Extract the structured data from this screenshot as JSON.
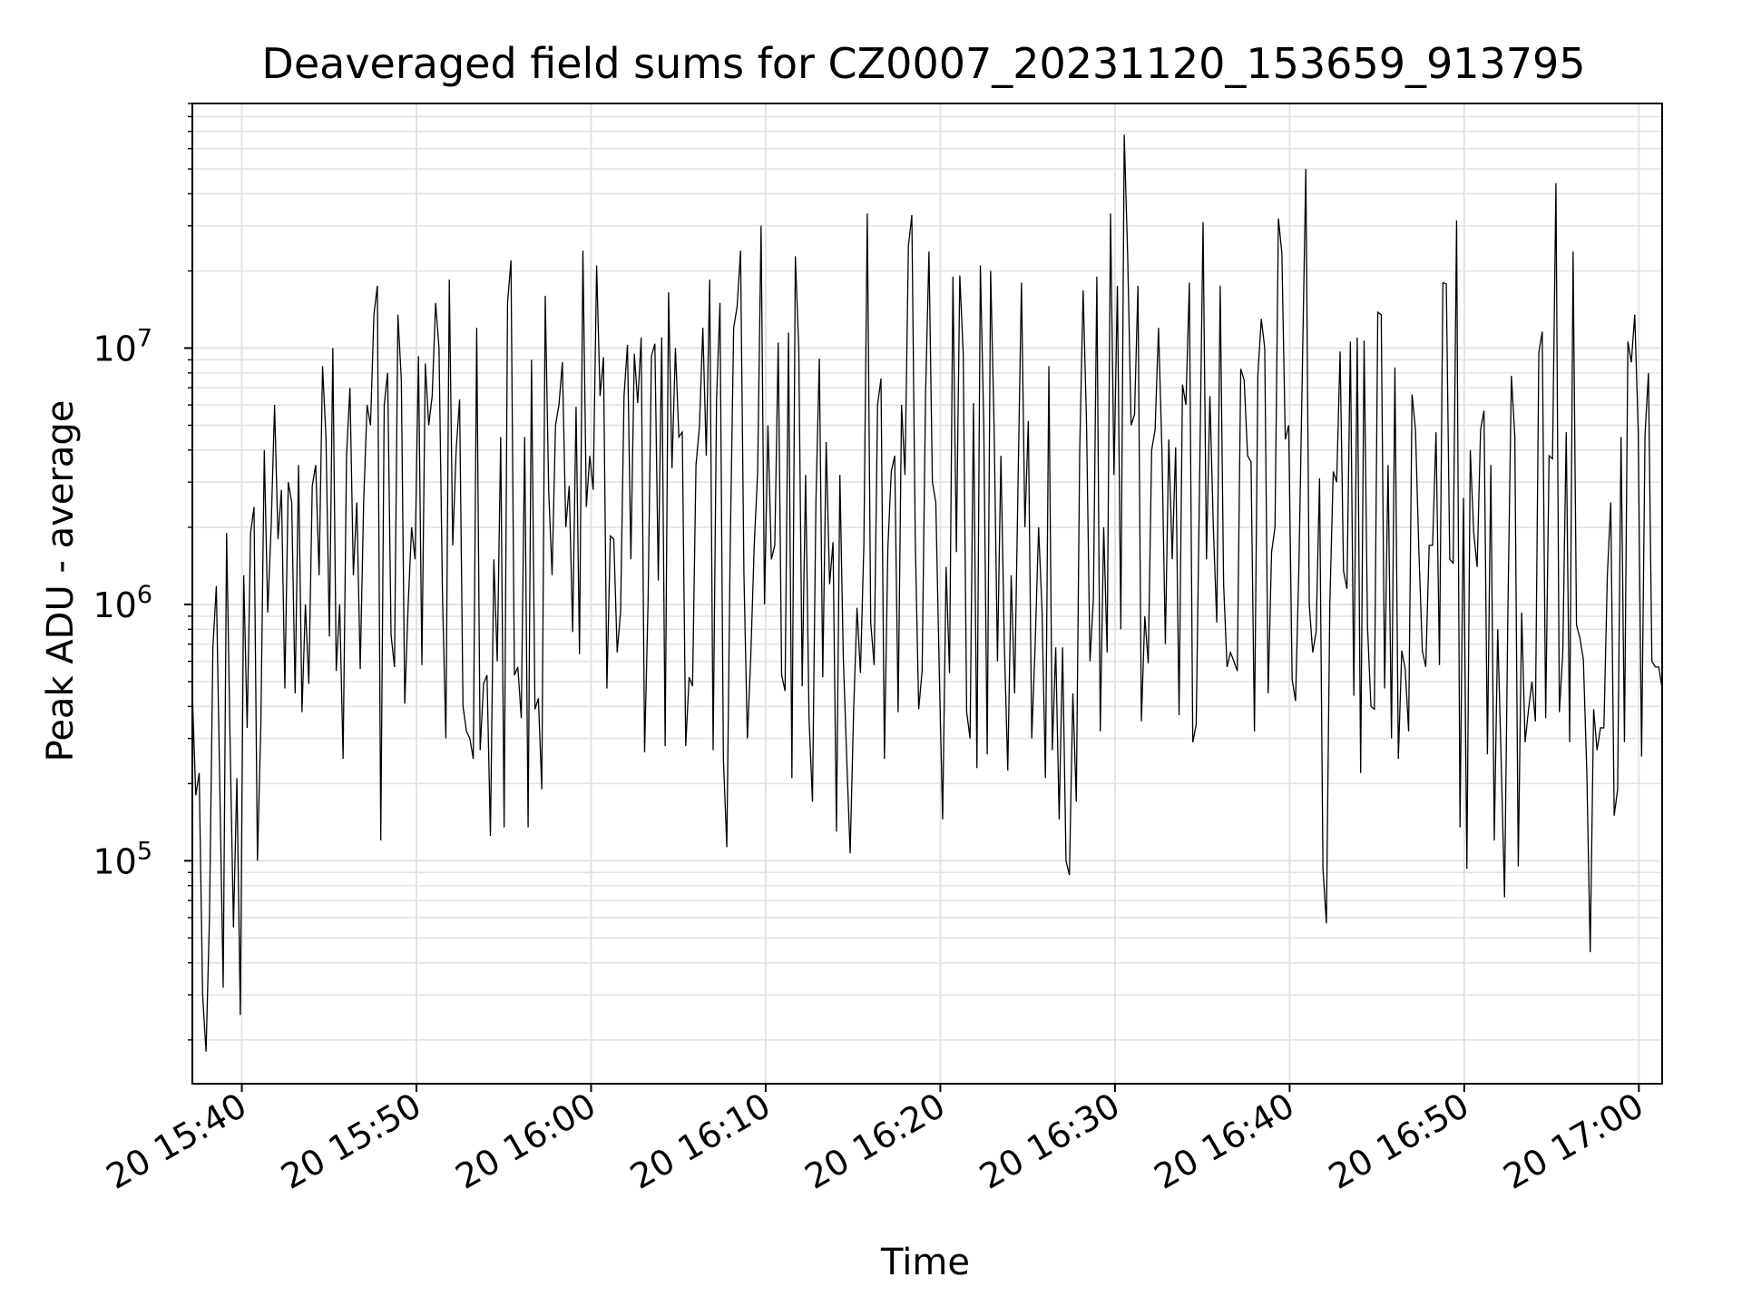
{
  "chart_data": {
    "type": "line",
    "title": "Deaveraged field sums for CZ0007_20231120_153659_913795",
    "xlabel": "Time",
    "ylabel": "Peak ADU - average",
    "yscale": "log",
    "ylim": [
      13500,
      90000000
    ],
    "xlim": [
      "2023-11-20 15:37:10",
      "2023-11-20 17:01:20"
    ],
    "grid": "major and minor",
    "line_color": "#000000",
    "x_ticks": [
      "20 15:40",
      "20 15:50",
      "20 16:00",
      "20 16:10",
      "20 16:20",
      "20 16:30",
      "20 16:40",
      "20 16:50",
      "20 17:00"
    ],
    "y_ticks": [
      {
        "base": "10",
        "exp": "5"
      },
      {
        "base": "10",
        "exp": "6"
      },
      {
        "base": "10",
        "exp": "7"
      }
    ],
    "x_start": "2023-11-20 15:37:10",
    "x_end": "2023-11-20 17:01:20",
    "series": [
      {
        "values": [
          450000,
          180000,
          220000,
          30000,
          18000,
          60000,
          680000,
          1180000,
          200000,
          32000,
          1900000,
          300000,
          55000,
          210000,
          25000,
          1300000,
          330000,
          1900000,
          2400000,
          100000,
          340000,
          4000000,
          930000,
          2000000,
          6000000,
          1800000,
          2800000,
          470000,
          3000000,
          2500000,
          450000,
          3500000,
          380000,
          1000000,
          490000,
          2900000,
          3500000,
          1300000,
          8500000,
          4500000,
          750000,
          10000000,
          550000,
          1000000,
          250000,
          3800000,
          7000000,
          1300000,
          2500000,
          560000,
          2500000,
          6000000,
          5000000,
          13500000,
          17500000,
          120000,
          6000000,
          8000000,
          760000,
          570000,
          13500000,
          7500000,
          410000,
          1000000,
          2000000,
          1500000,
          9300000,
          580000,
          8700000,
          5000000,
          6500000,
          15000000,
          10000000,
          1100000,
          300000,
          18500000,
          1700000,
          4000000,
          6300000,
          400000,
          320000,
          300000,
          250000,
          12000000,
          270000,
          490000,
          530000,
          125000,
          1500000,
          600000,
          4500000,
          135000,
          15000000,
          22000000,
          530000,
          570000,
          360000,
          4500000,
          135000,
          9000000,
          390000,
          430000,
          190000,
          16000000,
          2800000,
          1300000,
          5000000,
          6000000,
          8800000,
          2000000,
          2900000,
          780000,
          5900000,
          640000,
          24000000,
          2400000,
          3800000,
          2800000,
          21000000,
          6500000,
          9200000,
          470000,
          1850000,
          1800000,
          650000,
          940000,
          6500000,
          10300000,
          1500000,
          9500000,
          6100000,
          11000000,
          265000,
          1000000,
          9300000,
          10400000,
          1240000,
          11000000,
          280000,
          16500000,
          3400000,
          10000000,
          4500000,
          4700000,
          280000,
          520000,
          480000,
          3500000,
          4900000,
          12000000,
          3800000,
          18500000,
          270000,
          6300000,
          15000000,
          250000,
          113000,
          1700000,
          12000000,
          14500000,
          24000000,
          1300000,
          300000,
          630000,
          1700000,
          3300000,
          30000000,
          1000000,
          5000000,
          1500000,
          1700000,
          10500000,
          530000,
          460000,
          11500000,
          210000,
          22800000,
          10000000,
          480000,
          3200000,
          360000,
          170000,
          2500000,
          9100000,
          520000,
          4300000,
          1200000,
          1750000,
          130000,
          3200000,
          620000,
          250000,
          107000,
          380000,
          970000,
          540000,
          1700000,
          33500000,
          850000,
          580000,
          6000000,
          7600000,
          250000,
          1650000,
          3300000,
          3800000,
          380000,
          6000000,
          3200000,
          25000000,
          33000000,
          1800000,
          390000,
          550000,
          6500000,
          23800000,
          3000000,
          2500000,
          550000,
          145000,
          1400000,
          540000,
          19000000,
          1600000,
          19200000,
          9500000,
          380000,
          300000,
          6100000,
          230000,
          21000000,
          5000000,
          260000,
          20000000,
          5000000,
          600000,
          3800000,
          700000,
          225000,
          1300000,
          450000,
          3000000,
          18000000,
          2000000,
          5200000,
          300000,
          700000,
          2000000,
          950000,
          210000,
          8500000,
          270000,
          680000,
          145000,
          680000,
          100000,
          88000,
          450000,
          170000,
          4000000,
          16800000,
          5000000,
          600000,
          1060000,
          19000000,
          320000,
          2000000,
          650000,
          33500000,
          3200000,
          17500000,
          800000,
          68000000,
          22800000,
          5000000,
          5500000,
          17500000,
          350000,
          900000,
          590000,
          4000000,
          4800000,
          12000000,
          4000000,
          700000,
          4400000,
          1500000,
          4100000,
          370000,
          7200000,
          6000000,
          18000000,
          290000,
          340000,
          3100000,
          31000000,
          1500000,
          6500000,
          2000000,
          850000,
          17500000,
          1200000,
          570000,
          650000,
          600000,
          550000,
          8300000,
          7500000,
          3800000,
          3600000,
          320000,
          7900000,
          13000000,
          10000000,
          450000,
          1600000,
          2000000,
          32000000,
          23500000,
          4400000,
          5000000,
          510000,
          420000,
          1450000,
          8500000,
          50000000,
          1000000,
          650000,
          780000,
          3100000,
          93000,
          57000,
          1000000,
          3300000,
          3000000,
          9700000,
          1350000,
          1150000,
          10600000,
          440000,
          11000000,
          220000,
          10700000,
          820000,
          400000,
          390000,
          13800000,
          13500000,
          470000,
          3500000,
          300000,
          8400000,
          250000,
          660000,
          560000,
          320000,
          6600000,
          4800000,
          1600000,
          660000,
          570000,
          1700000,
          1700000,
          4700000,
          580000,
          18000000,
          17800000,
          1500000,
          1450000,
          31500000,
          135000,
          2600000,
          93000,
          4000000,
          1900000,
          1400000,
          4800000,
          5700000,
          260000,
          3500000,
          120000,
          800000,
          250000,
          72000,
          1000000,
          7800000,
          4500000,
          95000,
          930000,
          290000,
          390000,
          500000,
          350000,
          9600000,
          11600000,
          360000,
          3800000,
          3700000,
          44000000,
          380000,
          650000,
          4700000,
          290000,
          23800000,
          830000,
          740000,
          610000,
          225000,
          44000,
          390000,
          270000,
          330000,
          330000,
          1300000,
          2500000,
          150000,
          190000,
          4500000,
          290000,
          10600000,
          8800000,
          13500000,
          4800000,
          255000,
          4600000,
          8000000,
          600000,
          570000,
          570000,
          470000
        ]
      }
    ]
  }
}
